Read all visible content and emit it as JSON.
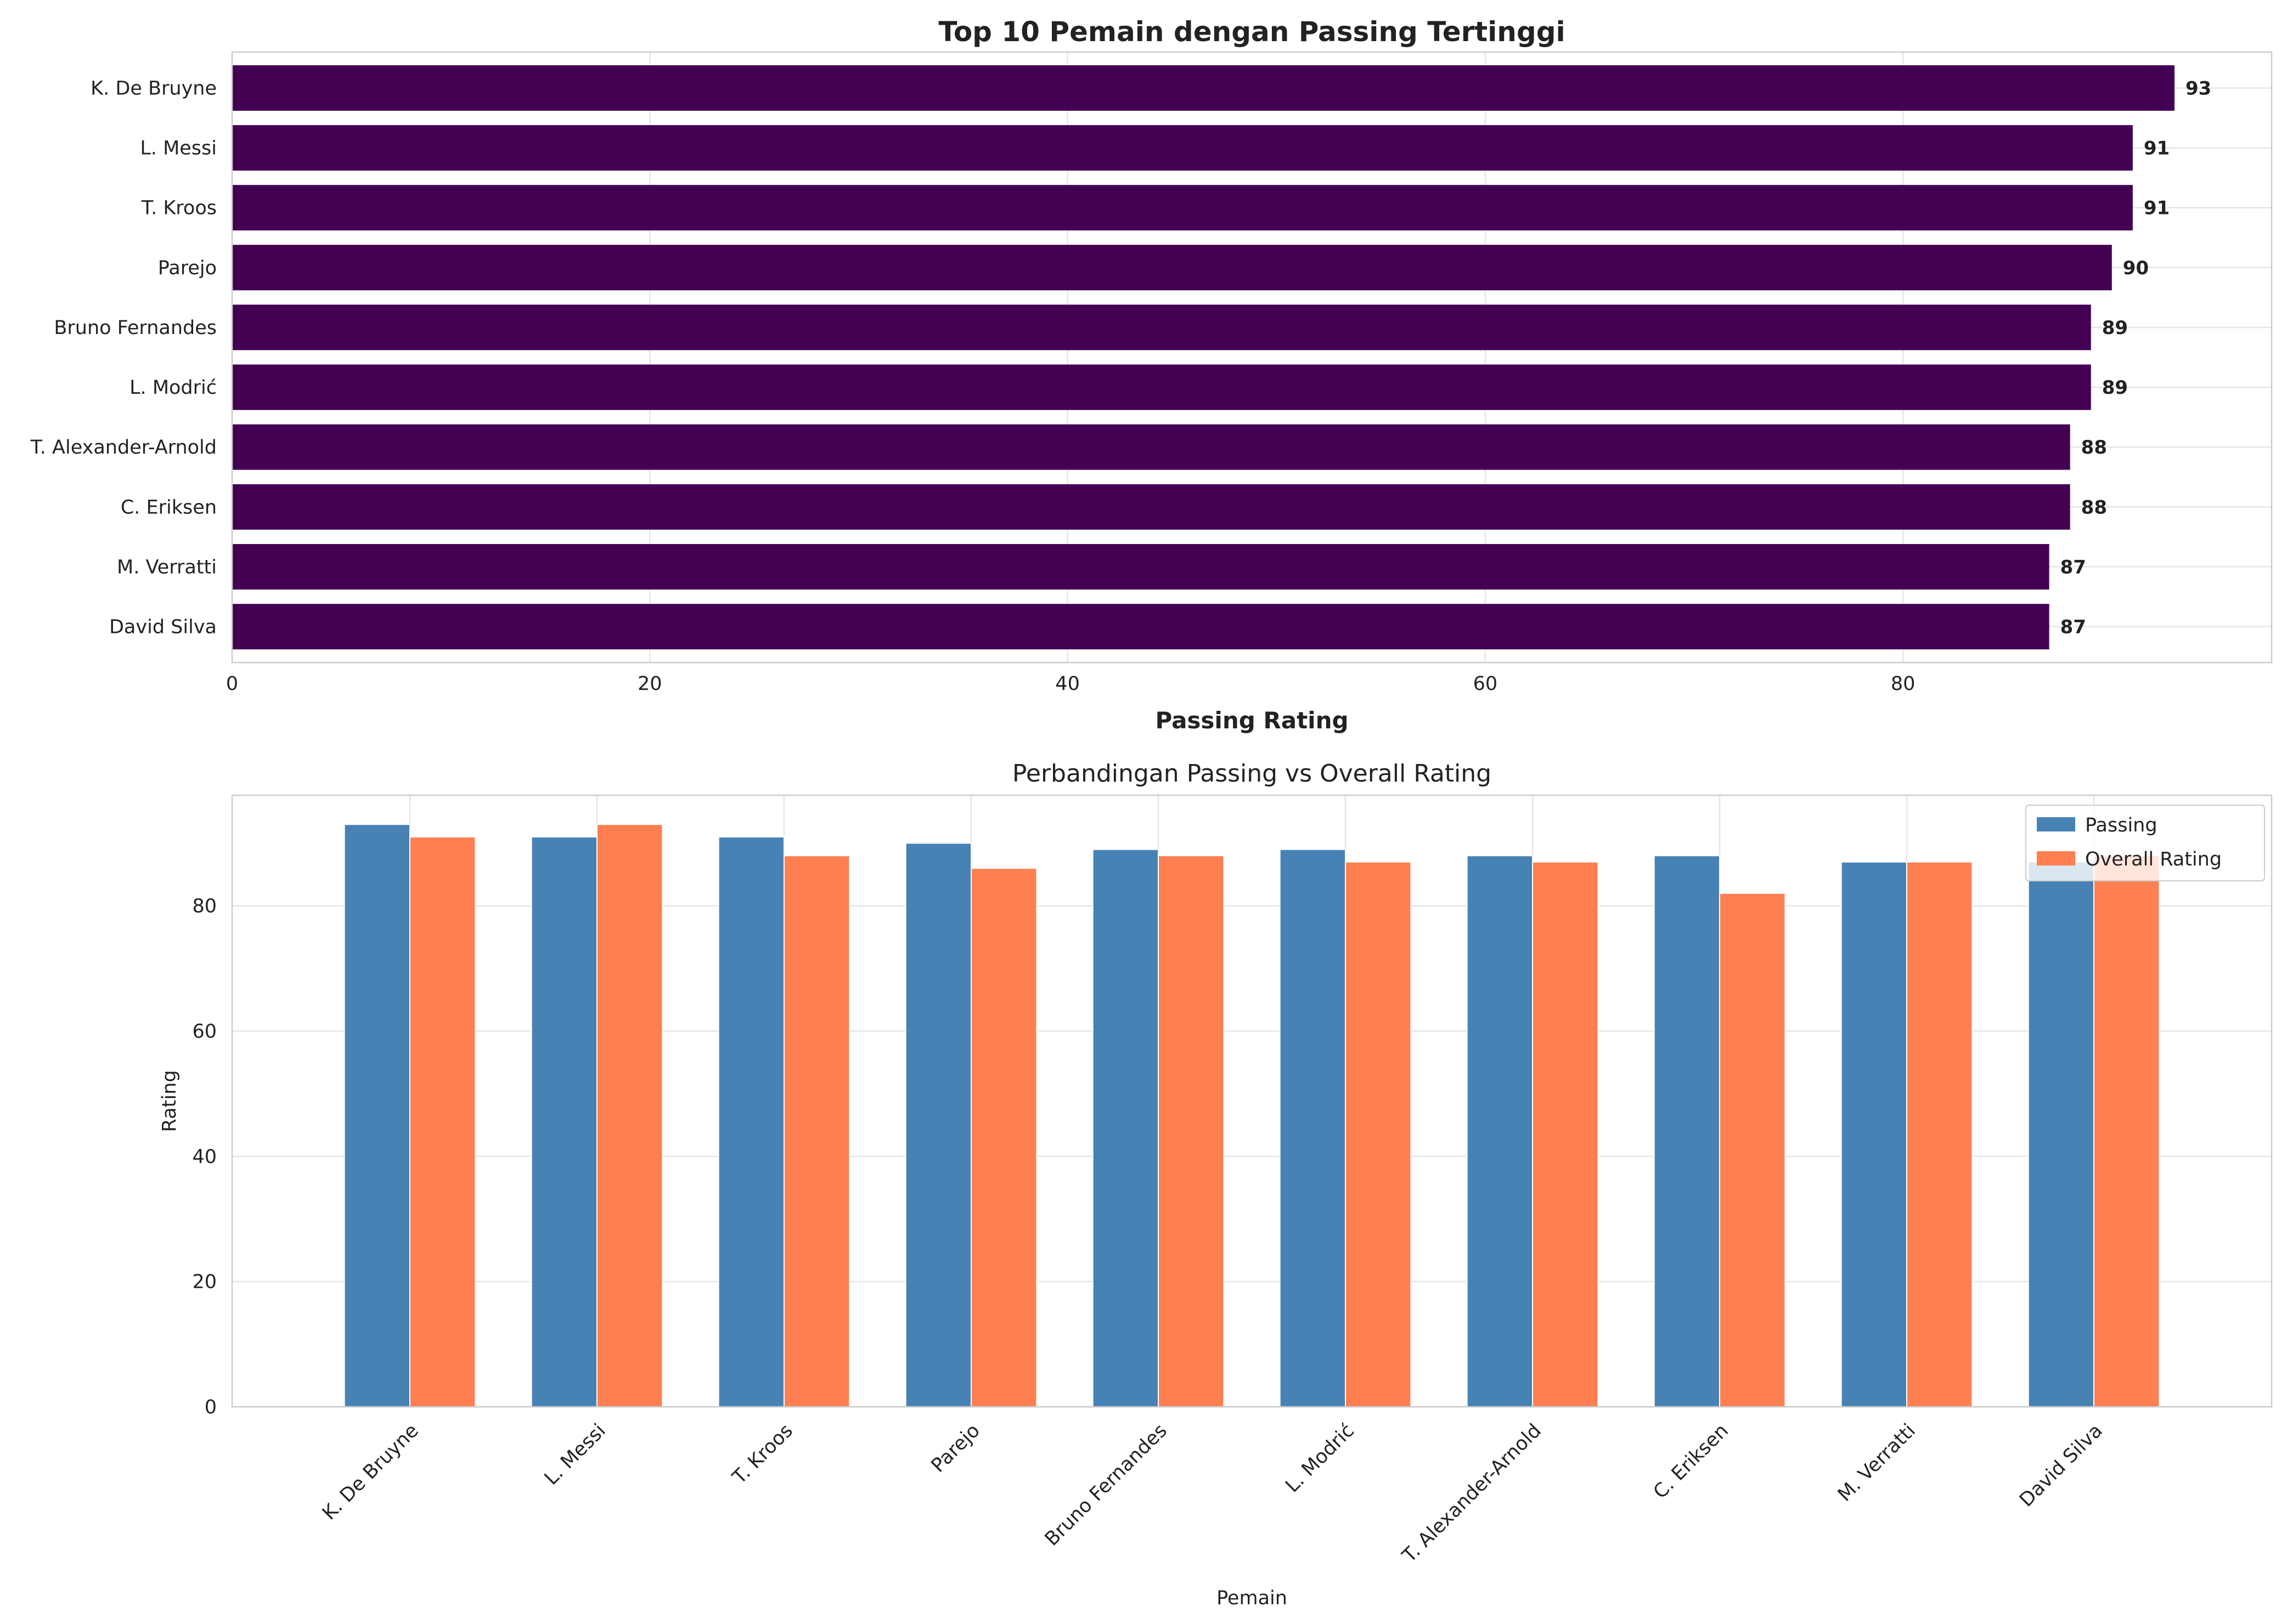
{
  "colors": {
    "top_bar_fill": "#440154",
    "passing": "#4682B4",
    "overall": "#FF7F50",
    "grid": "#e5e5e5",
    "spine": "#cccccc"
  },
  "chart_data": [
    {
      "type": "bar",
      "orientation": "horizontal",
      "title": "Top 10 Pemain dengan Passing Tertinggi",
      "xlabel": "Passing Rating",
      "ylabel": "",
      "categories": [
        "K. De Bruyne",
        "L. Messi",
        "T. Kroos",
        "Parejo",
        "Bruno Fernandes",
        "L. Modrić",
        "T. Alexander-Arnold",
        "C. Eriksen",
        "M. Verratti",
        "David Silva"
      ],
      "values": [
        93,
        91,
        91,
        90,
        89,
        89,
        88,
        88,
        87,
        87
      ],
      "value_labels": [
        "93",
        "91",
        "91",
        "90",
        "89",
        "89",
        "88",
        "88",
        "87",
        "87"
      ],
      "xlim": [
        0,
        97.65
      ],
      "xticks": [
        0,
        20,
        40,
        60,
        80
      ],
      "xtick_labels": [
        "0",
        "20",
        "40",
        "60",
        "80"
      ],
      "grid": true
    },
    {
      "type": "bar",
      "orientation": "vertical",
      "title": "Perbandingan Passing vs Overall Rating",
      "xlabel": "Pemain",
      "ylabel": "Rating",
      "categories": [
        "K. De Bruyne",
        "L. Messi",
        "T. Kroos",
        "Parejo",
        "Bruno Fernandes",
        "L. Modrić",
        "T. Alexander-Arnold",
        "C. Eriksen",
        "M. Verratti",
        "David Silva"
      ],
      "series": [
        {
          "name": "Passing",
          "values": [
            93,
            91,
            91,
            90,
            89,
            89,
            88,
            88,
            87,
            87
          ]
        },
        {
          "name": "Overall Rating",
          "values": [
            91,
            93,
            88,
            86,
            88,
            87,
            87,
            82,
            87,
            88
          ]
        }
      ],
      "ylim": [
        0,
        97.65
      ],
      "yticks": [
        0,
        20,
        40,
        60,
        80
      ],
      "ytick_labels": [
        "0",
        "20",
        "40",
        "60",
        "80"
      ],
      "grid": true,
      "legend_position": "top-right"
    }
  ]
}
